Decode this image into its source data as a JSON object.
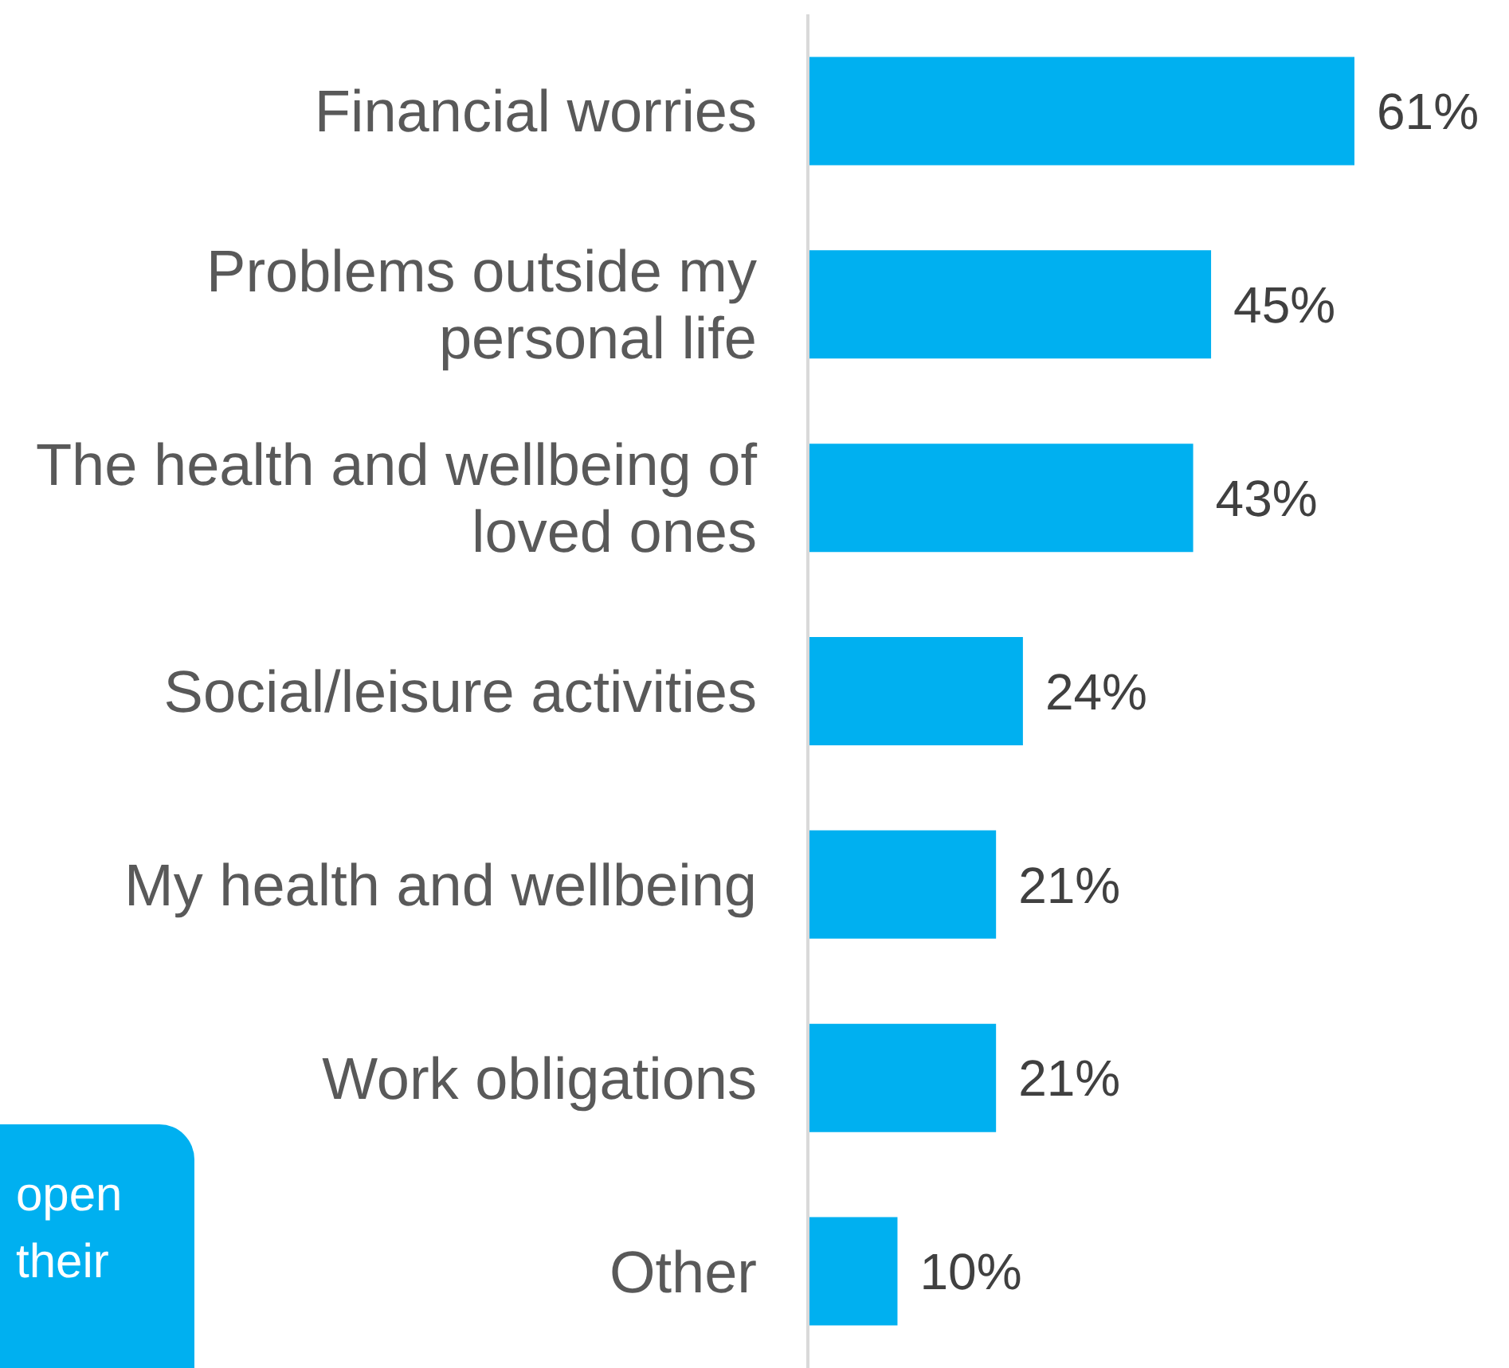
{
  "chart_data": {
    "type": "bar",
    "orientation": "horizontal",
    "categories": [
      "Financial worries",
      "Problems outside my personal life",
      "The health and wellbeing of loved ones",
      "Social/leisure activities",
      "My health and wellbeing",
      "Work obligations",
      "Other"
    ],
    "values": [
      61,
      45,
      43,
      24,
      21,
      21,
      10
    ],
    "value_labels": [
      "61%",
      "45%",
      "43%",
      "24%",
      "21%",
      "21%",
      "10%"
    ],
    "color": "#00b0f0",
    "annotations": [
      "open their"
    ]
  }
}
